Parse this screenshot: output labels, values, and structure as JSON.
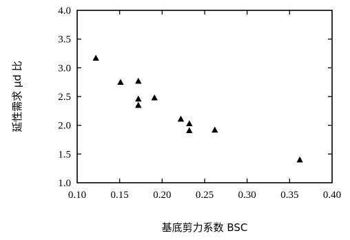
{
  "chart_data": {
    "type": "scatter",
    "title": "",
    "xlabel": "基底剪力系数 BSC",
    "ylabel": "延性需求 μd 比",
    "xlim": [
      0.1,
      0.4
    ],
    "ylim": [
      1.0,
      4.0
    ],
    "xticks": [
      "0.10",
      "0.15",
      "0.20",
      "0.25",
      "0.30",
      "0.35",
      "0.40"
    ],
    "yticks": [
      "1.0",
      "1.5",
      "2.0",
      "2.5",
      "3.0",
      "3.5",
      "4.0"
    ],
    "marker": "triangle",
    "marker_color": "#000000",
    "grid": false,
    "legend": "none",
    "points": [
      {
        "x": 0.122,
        "y": 3.17
      },
      {
        "x": 0.151,
        "y": 2.75
      },
      {
        "x": 0.172,
        "y": 2.77
      },
      {
        "x": 0.172,
        "y": 2.46
      },
      {
        "x": 0.172,
        "y": 2.35
      },
      {
        "x": 0.191,
        "y": 2.48
      },
      {
        "x": 0.222,
        "y": 2.11
      },
      {
        "x": 0.232,
        "y": 2.03
      },
      {
        "x": 0.232,
        "y": 1.91
      },
      {
        "x": 0.262,
        "y": 1.92
      },
      {
        "x": 0.362,
        "y": 1.4
      }
    ]
  }
}
